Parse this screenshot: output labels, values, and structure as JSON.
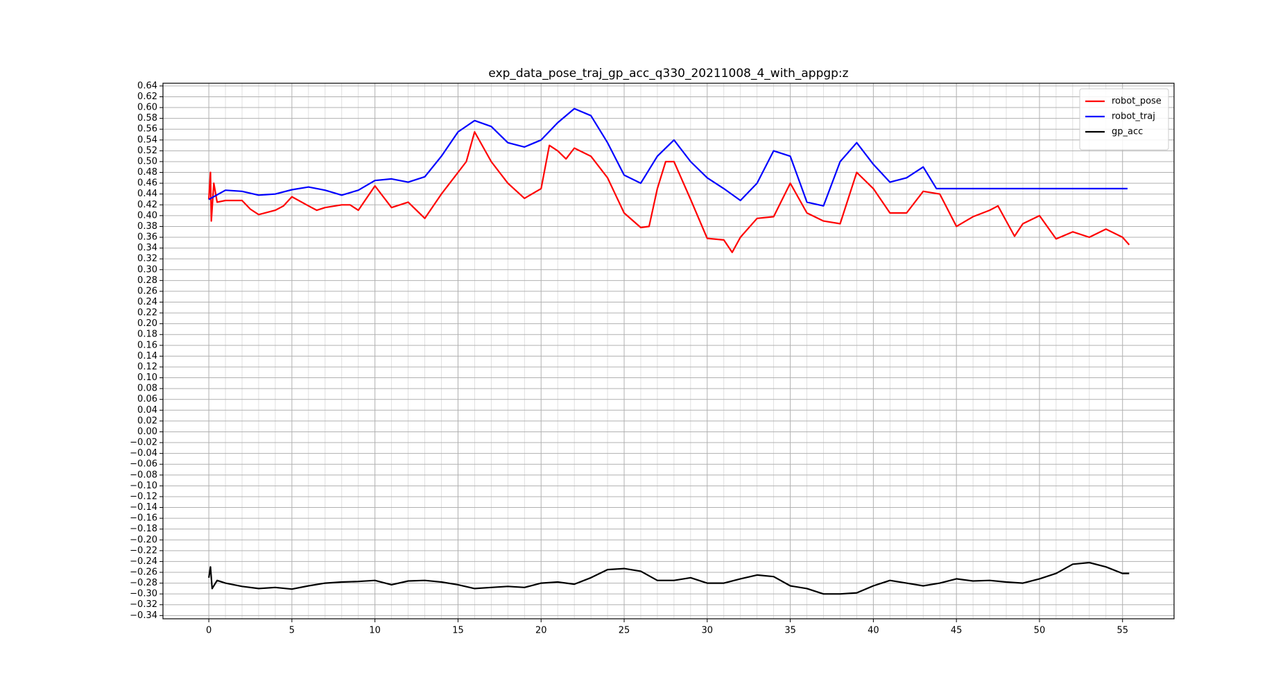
{
  "chart_data": {
    "type": "line",
    "title": "exp_data_pose_traj_gp_acc_q330_20211008_4_with_appgp:z",
    "xlim": [
      -2.76,
      58.1
    ],
    "ylim": [
      -0.346,
      0.645
    ],
    "xticks": [
      0,
      5,
      10,
      15,
      20,
      25,
      30,
      35,
      40,
      45,
      50,
      55
    ],
    "yticks": [
      0.64,
      0.62,
      {
        "value": 0.6,
        "label": "0.60"
      },
      0.58,
      0.56,
      0.54,
      0.52,
      {
        "value": 0.5,
        "label": "0.50"
      },
      0.48,
      0.46,
      0.44,
      0.42,
      {
        "value": 0.4,
        "label": "0.40"
      },
      0.38,
      0.36,
      0.34,
      0.32,
      {
        "value": 0.3,
        "label": "0.30"
      },
      0.28,
      0.26,
      0.24,
      0.22,
      {
        "value": 0.2,
        "label": "0.20"
      },
      0.18,
      0.16,
      0.14,
      0.12,
      {
        "value": 0.1,
        "label": "0.10"
      },
      0.08,
      0.06,
      0.04,
      0.02,
      {
        "value": 0,
        "label": "0.00"
      },
      {
        "value": -0.02,
        "label": "−0.02"
      },
      {
        "value": -0.04,
        "label": "−0.04"
      },
      {
        "value": -0.06,
        "label": "−0.06"
      },
      {
        "value": -0.08,
        "label": "−0.08"
      },
      {
        "value": -0.1,
        "label": "−0.10"
      },
      {
        "value": -0.12,
        "label": "−0.12"
      },
      {
        "value": -0.14,
        "label": "−0.14"
      },
      {
        "value": -0.16,
        "label": "−0.16"
      },
      {
        "value": -0.18,
        "label": "−0.18"
      },
      {
        "value": -0.2,
        "label": "−0.20"
      },
      {
        "value": -0.22,
        "label": "−0.22"
      },
      {
        "value": -0.24,
        "label": "−0.24"
      },
      {
        "value": -0.26,
        "label": "−0.26"
      },
      {
        "value": -0.28,
        "label": "−0.28"
      },
      {
        "value": -0.3,
        "label": "−0.30"
      },
      {
        "value": -0.32,
        "label": "−0.32"
      },
      {
        "value": -0.34,
        "label": "−0.34"
      }
    ],
    "grid": true,
    "legend": "upper right",
    "series": [
      {
        "name": "robot_pose",
        "color": "#ff0000",
        "x": [
          0,
          0.1,
          0.15,
          0.3,
          0.5,
          1,
          2,
          2.5,
          3,
          4,
          4.5,
          5,
          6,
          6.5,
          7,
          8,
          8.5,
          9,
          10,
          11,
          12,
          13,
          14,
          15,
          15.5,
          16,
          17,
          18,
          19,
          20,
          20.5,
          21,
          21.5,
          22,
          23,
          24,
          25,
          26,
          26.5,
          27,
          27.5,
          28,
          29,
          30,
          31,
          31.5,
          32,
          33,
          34,
          35,
          36,
          37,
          38,
          39,
          40,
          41,
          42,
          43,
          44,
          45,
          46,
          47,
          47.5,
          48,
          48.5,
          49,
          50,
          51,
          52,
          53,
          54,
          55,
          55.4
        ],
        "values": [
          0.43,
          0.48,
          0.39,
          0.46,
          0.425,
          0.428,
          0.428,
          0.412,
          0.402,
          0.41,
          0.418,
          0.435,
          0.418,
          0.41,
          0.415,
          0.42,
          0.42,
          0.41,
          0.455,
          0.415,
          0.425,
          0.395,
          0.44,
          0.48,
          0.5,
          0.555,
          0.5,
          0.46,
          0.432,
          0.45,
          0.53,
          0.52,
          0.505,
          0.525,
          0.51,
          0.47,
          0.405,
          0.378,
          0.38,
          0.45,
          0.5,
          0.5,
          0.43,
          0.358,
          0.355,
          0.332,
          0.36,
          0.395,
          0.398,
          0.46,
          0.405,
          0.39,
          0.385,
          0.48,
          0.45,
          0.405,
          0.405,
          0.445,
          0.44,
          0.38,
          0.398,
          0.41,
          0.418,
          0.39,
          0.362,
          0.385,
          0.4,
          0.357,
          0.37,
          0.36,
          0.375,
          0.36,
          0.346
        ]
      },
      {
        "name": "robot_traj",
        "color": "#0000ff",
        "x": [
          0,
          1,
          2,
          3,
          4,
          5,
          6,
          7,
          8,
          9,
          10,
          11,
          12,
          13,
          14,
          15,
          16,
          17,
          18,
          19,
          20,
          21,
          22,
          23,
          24,
          25,
          26,
          27,
          28,
          29,
          30,
          31,
          32,
          33,
          34,
          35,
          36,
          37,
          38,
          39,
          40,
          41,
          42,
          43,
          43.8,
          55.3
        ],
        "values": [
          0.43,
          0.447,
          0.445,
          0.438,
          0.44,
          0.448,
          0.453,
          0.447,
          0.438,
          0.447,
          0.465,
          0.468,
          0.462,
          0.472,
          0.51,
          0.555,
          0.576,
          0.565,
          0.535,
          0.527,
          0.54,
          0.572,
          0.598,
          0.585,
          0.535,
          0.475,
          0.46,
          0.51,
          0.54,
          0.5,
          0.47,
          0.45,
          0.428,
          0.46,
          0.52,
          0.51,
          0.425,
          0.418,
          0.5,
          0.535,
          0.495,
          0.462,
          0.47,
          0.49,
          0.45,
          0.45
        ]
      },
      {
        "name": "gp_acc",
        "color": "#000000",
        "x": [
          0,
          0.1,
          0.2,
          0.5,
          1,
          2,
          3,
          4,
          5,
          6,
          7,
          8,
          9,
          10,
          11,
          12,
          13,
          14,
          15,
          16,
          17,
          18,
          19,
          20,
          21,
          22,
          23,
          24,
          25,
          26,
          27,
          28,
          29,
          30,
          31,
          32,
          33,
          34,
          35,
          36,
          37,
          38,
          39,
          40,
          41,
          42,
          43,
          44,
          45,
          46,
          47,
          48,
          49,
          50,
          51,
          52,
          53,
          54,
          55,
          55.4
        ],
        "values": [
          -0.27,
          -0.25,
          -0.29,
          -0.275,
          -0.28,
          -0.286,
          -0.29,
          -0.288,
          -0.291,
          -0.285,
          -0.28,
          -0.278,
          -0.277,
          -0.275,
          -0.283,
          -0.276,
          -0.275,
          -0.278,
          -0.283,
          -0.29,
          -0.288,
          -0.286,
          -0.288,
          -0.28,
          -0.278,
          -0.282,
          -0.27,
          -0.255,
          -0.253,
          -0.258,
          -0.275,
          -0.275,
          -0.27,
          -0.28,
          -0.28,
          -0.272,
          -0.265,
          -0.268,
          -0.285,
          -0.29,
          -0.3,
          -0.3,
          -0.298,
          -0.285,
          -0.275,
          -0.28,
          -0.285,
          -0.28,
          -0.272,
          -0.276,
          -0.275,
          -0.278,
          -0.28,
          -0.272,
          -0.262,
          -0.245,
          -0.242,
          -0.25,
          -0.262,
          -0.262
        ]
      }
    ]
  }
}
